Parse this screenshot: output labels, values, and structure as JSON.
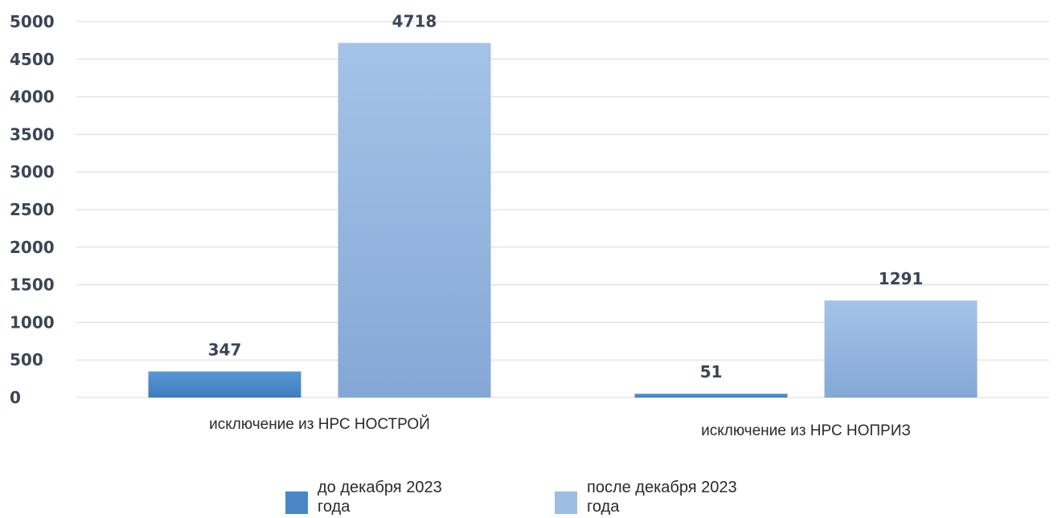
{
  "chart_data": {
    "type": "bar",
    "categories": [
      "исключение из НРС НОСТРОЙ",
      "исключение  из НРС НОПРИЗ"
    ],
    "series": [
      {
        "name": "до декабря 2023 года",
        "values": [
          347,
          51
        ],
        "color": "#4a86c5"
      },
      {
        "name": "после декабря 2023 года",
        "values": [
          4718,
          1291
        ],
        "color": "#9dbde3"
      }
    ],
    "ylim": [
      0,
      5000
    ],
    "yticks": [
      0,
      500,
      1000,
      1500,
      2000,
      2500,
      3000,
      3500,
      4000,
      4500,
      5000
    ],
    "grid": true,
    "legend": "bottom",
    "data_labels": true
  }
}
